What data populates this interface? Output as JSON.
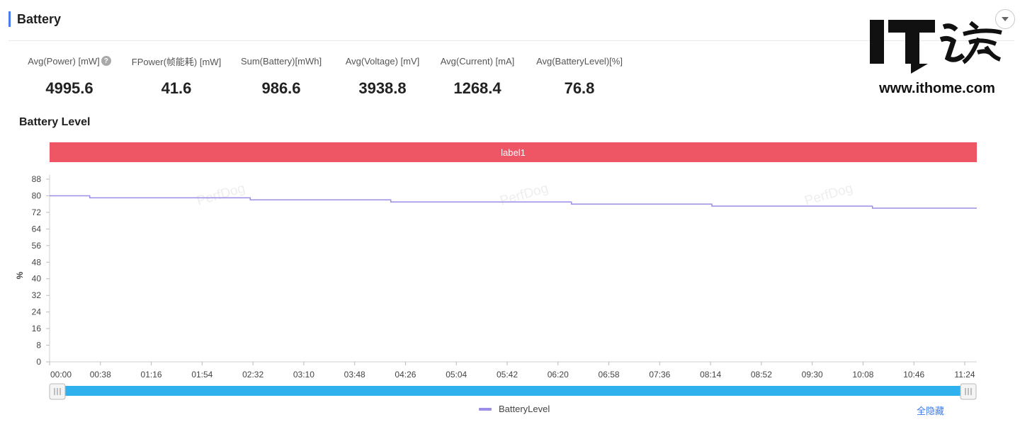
{
  "section": {
    "title": "Battery"
  },
  "stats": [
    {
      "label": "Avg(Power) [mW]",
      "value": "4995.6",
      "help": "?"
    },
    {
      "label": "FPower(帧能耗) [mW]",
      "value": "41.6"
    },
    {
      "label": "Sum(Battery)[mWh]",
      "value": "986.6"
    },
    {
      "label": "Avg(Voltage) [mV]",
      "value": "3938.8"
    },
    {
      "label": "Avg(Current) [mA]",
      "value": "1268.4"
    },
    {
      "label": "Avg(BatteryLevel)[%]",
      "value": "76.8"
    }
  ],
  "chart_title": "Battery Level",
  "label_band": {
    "text": "label1",
    "color": "#ee5565"
  },
  "watermark": {
    "logo_text": "IT之家",
    "url": "www.ithome.com"
  },
  "chart_watermark": "PerfDog",
  "legend": {
    "hide_all": "全隐藏"
  },
  "colors": {
    "accent": "#4a7cf0",
    "series": "#9b8ee6",
    "slider": "#2fb1ee",
    "link": "#3d7be8"
  },
  "chart_data": {
    "type": "line",
    "ylabel": "%",
    "xlabel": "",
    "ylim": [
      0,
      88
    ],
    "yticks": [
      0,
      8,
      16,
      24,
      32,
      40,
      48,
      56,
      64,
      72,
      80,
      88
    ],
    "xlim_seconds": [
      0,
      41580
    ],
    "xtick_labels": [
      "00:00",
      "00:38",
      "01:16",
      "01:54",
      "02:32",
      "03:10",
      "03:48",
      "04:26",
      "05:04",
      "05:42",
      "06:20",
      "06:58",
      "07:36",
      "08:14",
      "08:52",
      "09:30",
      "10:08",
      "10:46",
      "11:24"
    ],
    "series": [
      {
        "name": "BatteryLevel",
        "x": [
          "00:00",
          "00:30",
          "00:30",
          "02:30",
          "02:30",
          "04:15",
          "04:15",
          "06:30",
          "06:30",
          "08:15",
          "08:15",
          "10:15",
          "10:15",
          "11:33"
        ],
        "y": [
          80,
          80,
          79,
          79,
          78,
          78,
          77,
          77,
          76,
          76,
          75,
          75,
          74,
          74
        ]
      }
    ]
  }
}
